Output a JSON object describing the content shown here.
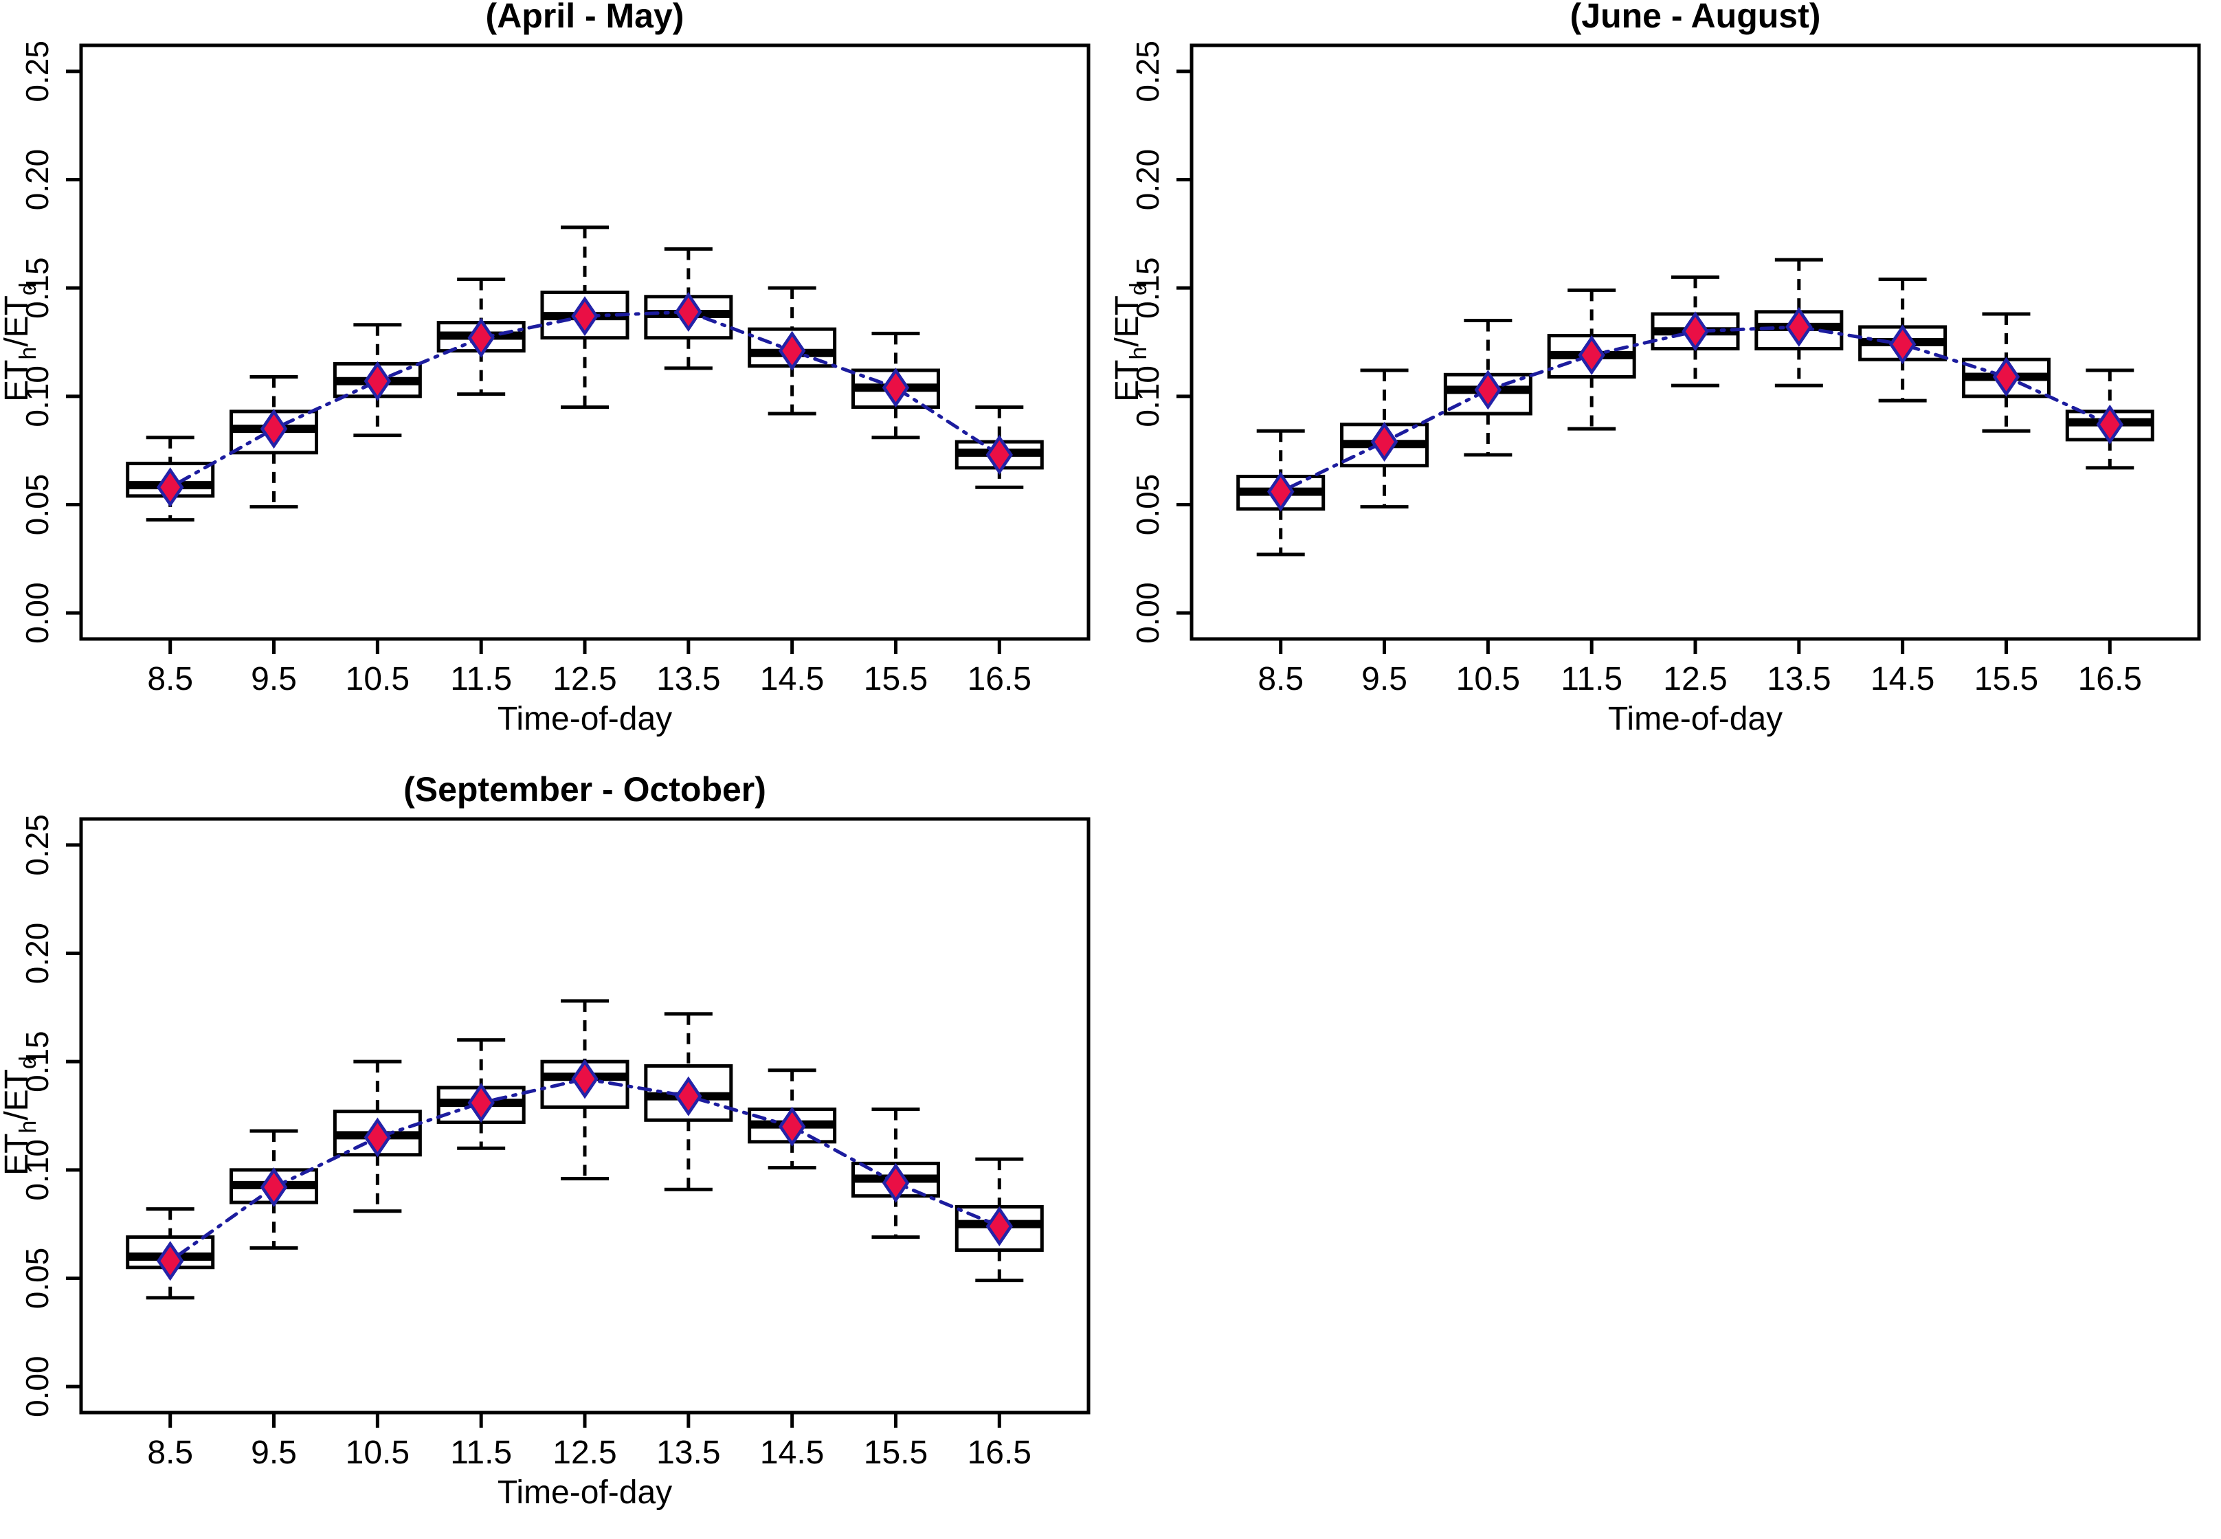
{
  "figure": {
    "background": "#ffffff"
  },
  "style": {
    "axis_color": "#000000",
    "text_color": "#000000",
    "box_fill": "#ffffff",
    "box_border": "#000000",
    "whisker_color": "#000000",
    "median_color": "#000000",
    "mean_line_color": "#1c1c9e",
    "marker_fill": "#ea0f45",
    "marker_border": "#2323a8"
  },
  "chart_data": [
    {
      "type": "boxplot",
      "title": "(April - May)",
      "xlabel": "Time-of-day",
      "ylabel": "ETh/ETd",
      "ylabel_parts": [
        {
          "text": "ET"
        },
        {
          "text": "h",
          "sub": true
        },
        {
          "text": "/ET"
        },
        {
          "text": "d",
          "sub": true
        }
      ],
      "categories": [
        8.5,
        9.5,
        10.5,
        11.5,
        12.5,
        13.5,
        14.5,
        15.5,
        16.5
      ],
      "x_tick_labels": [
        "8.5",
        "9.5",
        "10.5",
        "11.5",
        "12.5",
        "13.5",
        "14.5",
        "15.5",
        "16.5"
      ],
      "y_ticks": [
        0.0,
        0.05,
        0.1,
        0.15,
        0.2,
        0.25
      ],
      "y_tick_labels": [
        "0.00",
        "0.05",
        "0.10",
        "0.15",
        "0.20",
        "0.25"
      ],
      "ylim": [
        0,
        0.25
      ],
      "grid": false,
      "legend": null,
      "boxes": [
        {
          "x": 8.5,
          "low": 0.043,
          "q1": 0.054,
          "median": 0.059,
          "q3": 0.069,
          "high": 0.081,
          "mean": 0.058
        },
        {
          "x": 9.5,
          "low": 0.049,
          "q1": 0.074,
          "median": 0.085,
          "q3": 0.093,
          "high": 0.109,
          "mean": 0.085
        },
        {
          "x": 10.5,
          "low": 0.082,
          "q1": 0.1,
          "median": 0.107,
          "q3": 0.115,
          "high": 0.133,
          "mean": 0.107
        },
        {
          "x": 11.5,
          "low": 0.101,
          "q1": 0.121,
          "median": 0.128,
          "q3": 0.134,
          "high": 0.154,
          "mean": 0.127
        },
        {
          "x": 12.5,
          "low": 0.095,
          "q1": 0.127,
          "median": 0.137,
          "q3": 0.148,
          "high": 0.178,
          "mean": 0.137
        },
        {
          "x": 13.5,
          "low": 0.113,
          "q1": 0.127,
          "median": 0.138,
          "q3": 0.146,
          "high": 0.168,
          "mean": 0.139
        },
        {
          "x": 14.5,
          "low": 0.092,
          "q1": 0.114,
          "median": 0.12,
          "q3": 0.131,
          "high": 0.15,
          "mean": 0.121
        },
        {
          "x": 15.5,
          "low": 0.081,
          "q1": 0.095,
          "median": 0.104,
          "q3": 0.112,
          "high": 0.129,
          "mean": 0.104
        },
        {
          "x": 16.5,
          "low": 0.058,
          "q1": 0.067,
          "median": 0.074,
          "q3": 0.079,
          "high": 0.095,
          "mean": 0.073
        }
      ]
    },
    {
      "type": "boxplot",
      "title": "(June - August)",
      "xlabel": "Time-of-day",
      "ylabel": "ETh/ETd",
      "ylabel_parts": [
        {
          "text": "ET"
        },
        {
          "text": "h",
          "sub": true
        },
        {
          "text": "/ET"
        },
        {
          "text": "d",
          "sub": true
        }
      ],
      "categories": [
        8.5,
        9.5,
        10.5,
        11.5,
        12.5,
        13.5,
        14.5,
        15.5,
        16.5
      ],
      "x_tick_labels": [
        "8.5",
        "9.5",
        "10.5",
        "11.5",
        "12.5",
        "13.5",
        "14.5",
        "15.5",
        "16.5"
      ],
      "y_ticks": [
        0.0,
        0.05,
        0.1,
        0.15,
        0.2,
        0.25
      ],
      "y_tick_labels": [
        "0.00",
        "0.05",
        "0.10",
        "0.15",
        "0.20",
        "0.25"
      ],
      "ylim": [
        0,
        0.25
      ],
      "grid": false,
      "legend": null,
      "boxes": [
        {
          "x": 8.5,
          "low": 0.027,
          "q1": 0.048,
          "median": 0.056,
          "q3": 0.063,
          "high": 0.084,
          "mean": 0.056
        },
        {
          "x": 9.5,
          "low": 0.049,
          "q1": 0.068,
          "median": 0.078,
          "q3": 0.087,
          "high": 0.112,
          "mean": 0.079
        },
        {
          "x": 10.5,
          "low": 0.073,
          "q1": 0.092,
          "median": 0.103,
          "q3": 0.11,
          "high": 0.135,
          "mean": 0.103
        },
        {
          "x": 11.5,
          "low": 0.085,
          "q1": 0.109,
          "median": 0.119,
          "q3": 0.128,
          "high": 0.149,
          "mean": 0.119
        },
        {
          "x": 12.5,
          "low": 0.105,
          "q1": 0.122,
          "median": 0.13,
          "q3": 0.138,
          "high": 0.155,
          "mean": 0.13
        },
        {
          "x": 13.5,
          "low": 0.105,
          "q1": 0.122,
          "median": 0.132,
          "q3": 0.139,
          "high": 0.163,
          "mean": 0.132
        },
        {
          "x": 14.5,
          "low": 0.098,
          "q1": 0.117,
          "median": 0.125,
          "q3": 0.132,
          "high": 0.154,
          "mean": 0.124
        },
        {
          "x": 15.5,
          "low": 0.084,
          "q1": 0.1,
          "median": 0.109,
          "q3": 0.117,
          "high": 0.138,
          "mean": 0.109
        },
        {
          "x": 16.5,
          "low": 0.067,
          "q1": 0.08,
          "median": 0.088,
          "q3": 0.093,
          "high": 0.112,
          "mean": 0.087
        }
      ]
    },
    {
      "type": "boxplot",
      "title": "(September - October)",
      "xlabel": "Time-of-day",
      "ylabel": "ETh/ETd",
      "ylabel_parts": [
        {
          "text": "ET"
        },
        {
          "text": "h",
          "sub": true
        },
        {
          "text": "/ET"
        },
        {
          "text": "d",
          "sub": true
        }
      ],
      "categories": [
        8.5,
        9.5,
        10.5,
        11.5,
        12.5,
        13.5,
        14.5,
        15.5,
        16.5
      ],
      "x_tick_labels": [
        "8.5",
        "9.5",
        "10.5",
        "11.5",
        "12.5",
        "13.5",
        "14.5",
        "15.5",
        "16.5"
      ],
      "y_ticks": [
        0.0,
        0.05,
        0.1,
        0.15,
        0.2,
        0.25
      ],
      "y_tick_labels": [
        "0.00",
        "0.05",
        "0.10",
        "0.15",
        "0.20",
        "0.25"
      ],
      "ylim": [
        0,
        0.25
      ],
      "grid": false,
      "legend": null,
      "boxes": [
        {
          "x": 8.5,
          "low": 0.041,
          "q1": 0.055,
          "median": 0.06,
          "q3": 0.069,
          "high": 0.082,
          "mean": 0.058
        },
        {
          "x": 9.5,
          "low": 0.064,
          "q1": 0.085,
          "median": 0.093,
          "q3": 0.1,
          "high": 0.118,
          "mean": 0.092
        },
        {
          "x": 10.5,
          "low": 0.081,
          "q1": 0.107,
          "median": 0.116,
          "q3": 0.127,
          "high": 0.15,
          "mean": 0.115
        },
        {
          "x": 11.5,
          "low": 0.11,
          "q1": 0.122,
          "median": 0.131,
          "q3": 0.138,
          "high": 0.16,
          "mean": 0.131
        },
        {
          "x": 12.5,
          "low": 0.096,
          "q1": 0.129,
          "median": 0.143,
          "q3": 0.15,
          "high": 0.178,
          "mean": 0.142
        },
        {
          "x": 13.5,
          "low": 0.091,
          "q1": 0.123,
          "median": 0.134,
          "q3": 0.148,
          "high": 0.172,
          "mean": 0.134
        },
        {
          "x": 14.5,
          "low": 0.101,
          "q1": 0.113,
          "median": 0.121,
          "q3": 0.128,
          "high": 0.146,
          "mean": 0.12
        },
        {
          "x": 15.5,
          "low": 0.069,
          "q1": 0.088,
          "median": 0.096,
          "q3": 0.103,
          "high": 0.128,
          "mean": 0.094
        },
        {
          "x": 16.5,
          "low": 0.049,
          "q1": 0.063,
          "median": 0.075,
          "q3": 0.083,
          "high": 0.105,
          "mean": 0.074
        }
      ]
    }
  ]
}
